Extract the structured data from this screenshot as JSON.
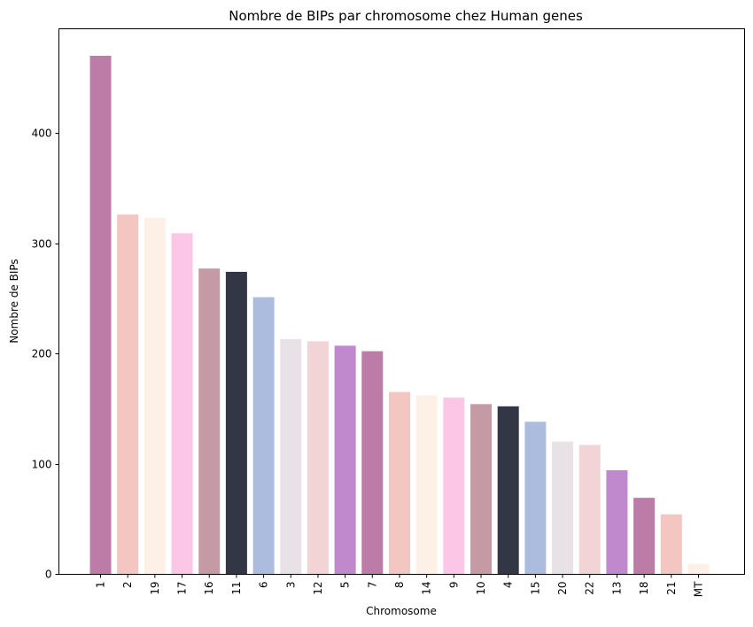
{
  "chart_data": {
    "type": "bar",
    "title": "Nombre de BIPs par chromosome chez Human genes",
    "xlabel": "Chromosome",
    "ylabel": "Nombre de BIPs",
    "ylim": [
      0,
      495
    ],
    "yticks": [
      0,
      100,
      200,
      300,
      400
    ],
    "categories": [
      "1",
      "2",
      "19",
      "17",
      "16",
      "11",
      "6",
      "3",
      "12",
      "5",
      "7",
      "8",
      "14",
      "9",
      "10",
      "4",
      "15",
      "20",
      "22",
      "13",
      "18",
      "21",
      "MT"
    ],
    "values": [
      470,
      326,
      323,
      309,
      277,
      274,
      251,
      213,
      211,
      207,
      202,
      165,
      162,
      160,
      154,
      152,
      138,
      120,
      117,
      94,
      69,
      54,
      9
    ],
    "colors": [
      "#bd7ba8",
      "#f4c6c2",
      "#fdf0e6",
      "#fcc6e6",
      "#c49aa4",
      "#323645",
      "#abbcdf",
      "#e8e1e6",
      "#f2d4d6",
      "#c088cd"
    ],
    "grid": false
  }
}
